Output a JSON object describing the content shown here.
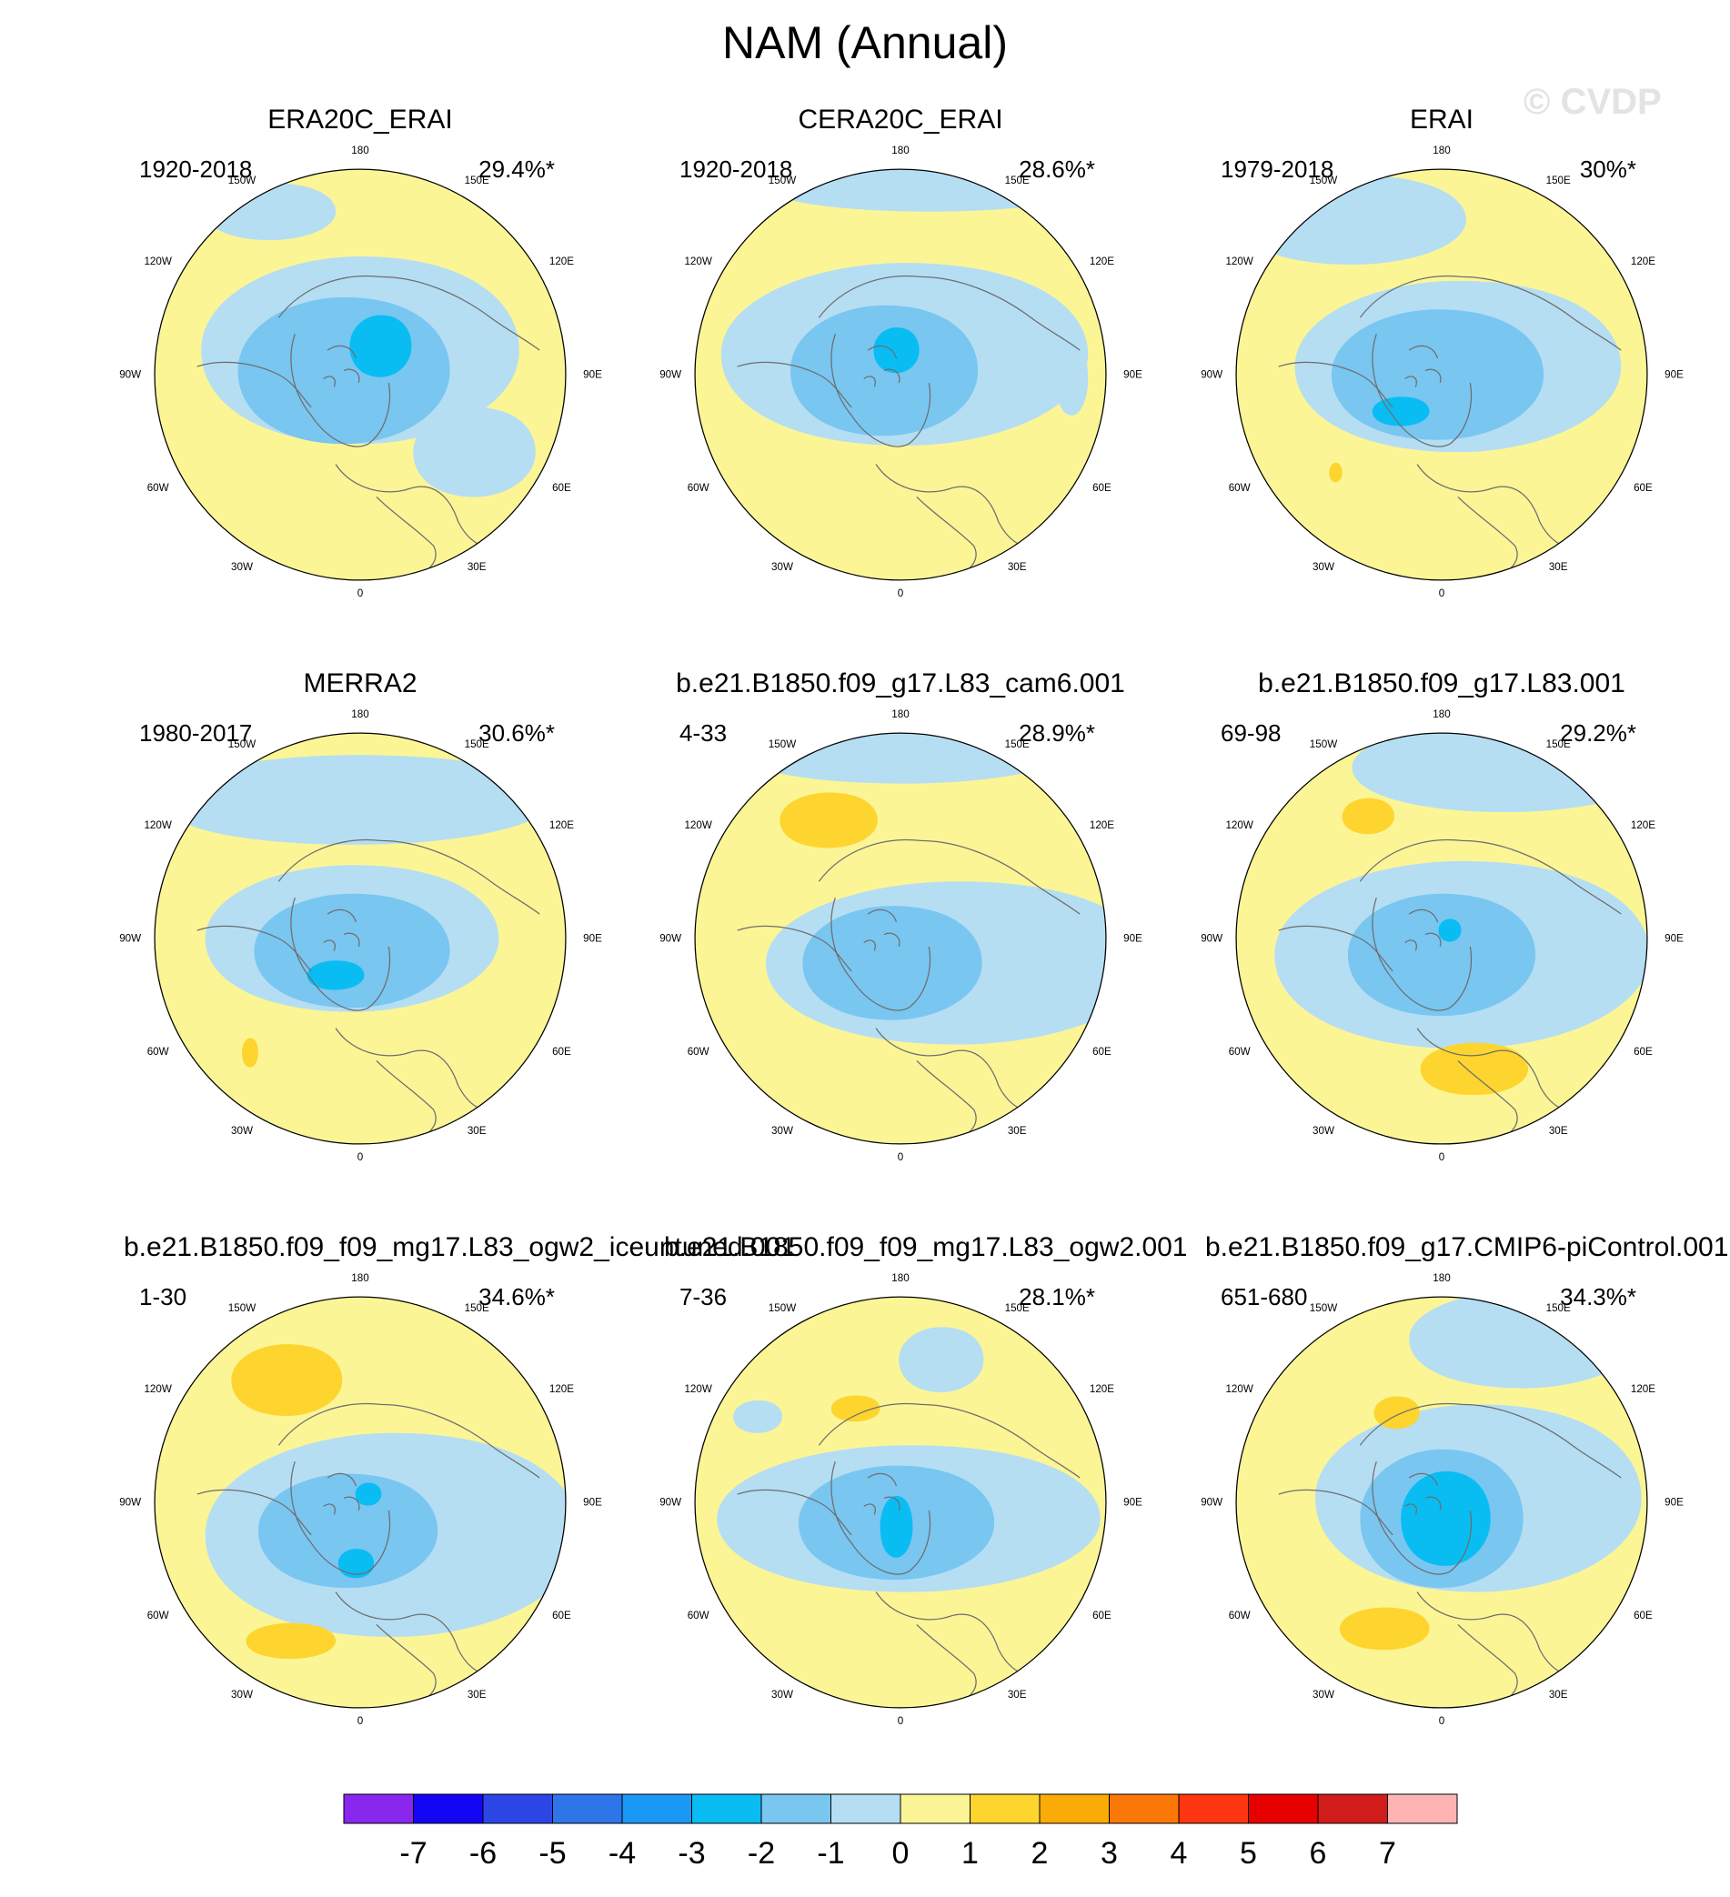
{
  "title": "NAM (Annual)",
  "watermark": "© CVDP",
  "colors": {
    "yellow": "#fbf596",
    "light_blue": "#b5def3",
    "mid_blue": "#79c6f1",
    "deep_blue": "#09bdf3",
    "gold": "#fdd52e",
    "land_outline": "#6e6e6e",
    "rim": "#000000"
  },
  "map_labels": {
    "top": "180",
    "bottom": "0",
    "left": "90W",
    "right": "90E",
    "upper_left_a": "150W",
    "upper_left_b": "120W",
    "upper_right_a": "150E",
    "upper_right_b": "120E",
    "lower_left_a": "60W",
    "lower_left_b": "30W",
    "lower_right_a": "60E",
    "lower_right_b": "30E"
  },
  "chart_data": {
    "type": "heatmap",
    "title": "NAM (Annual)",
    "projection": "polar stereographic, Northern Hemisphere",
    "panels": [
      {
        "title": "ERA20C_ERAI",
        "years": "1920-2018",
        "percent": "29.4%*"
      },
      {
        "title": "CERA20C_ERAI",
        "years": "1920-2018",
        "percent": "28.6%*"
      },
      {
        "title": "ERAI",
        "years": "1979-2018",
        "percent": "30%*"
      },
      {
        "title": "MERRA2",
        "years": "1980-2017",
        "percent": "30.6%*"
      },
      {
        "title": "b.e21.B1850.f09_g17.L83_cam6.001",
        "years": "4-33",
        "percent": "28.9%*"
      },
      {
        "title": "b.e21.B1850.f09_g17.L83.001",
        "years": "69-98",
        "percent": "29.2%*"
      },
      {
        "title": "b.e21.B1850.f09_f09_mg17.L83_ogw2_iceuntuned.001",
        "years": "1-30",
        "percent": "34.6%*"
      },
      {
        "title": "b.e21.B1850.f09_f09_mg17.L83_ogw2.001",
        "years": "7-36",
        "percent": "28.1%*"
      },
      {
        "title": "b.e21.B1850.f09_g17.CMIP6-piControl.001",
        "years": "651-680",
        "percent": "34.3%*"
      }
    ],
    "colorbar": {
      "labels": [
        "-7",
        "-6",
        "-5",
        "-4",
        "-3",
        "-2",
        "-1",
        "0",
        "1",
        "2",
        "3",
        "4",
        "5",
        "6",
        "7"
      ],
      "colors": [
        "#8a27ee",
        "#1505f5",
        "#2c46e6",
        "#2f75ea",
        "#1a98f5",
        "#09bdf3",
        "#79c6f1",
        "#b5def3",
        "#fbf596",
        "#fdd52e",
        "#fbab06",
        "#fb7708",
        "#fd3510",
        "#e60000",
        "#d11c1c",
        "#ffb4b4"
      ]
    }
  }
}
